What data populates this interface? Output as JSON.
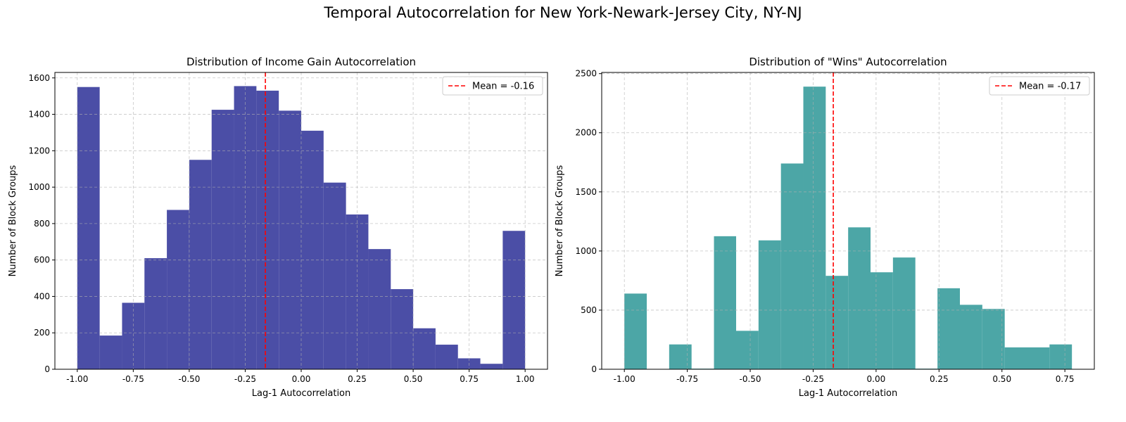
{
  "figure_title": "Temporal Autocorrelation for New York-Newark-Jersey City, NY-NJ",
  "chart_data": [
    {
      "type": "bar",
      "subtype": "histogram",
      "title": "Distribution of Income Gain Autocorrelation",
      "xlabel": "Lag-1 Autocorrelation",
      "ylabel": "Number of Block Groups",
      "color": "#4b4ea6",
      "bin_edges": [
        -1.0,
        -0.9,
        -0.8,
        -0.7,
        -0.6,
        -0.5,
        -0.4,
        -0.3,
        -0.2,
        -0.1,
        0.0,
        0.1,
        0.2,
        0.3,
        0.4,
        0.5,
        0.6,
        0.7,
        0.8,
        0.9,
        1.0
      ],
      "values": [
        1550,
        185,
        365,
        610,
        875,
        1150,
        1425,
        1555,
        1530,
        1420,
        1310,
        1025,
        850,
        660,
        440,
        225,
        135,
        60,
        30,
        760
      ],
      "xlim": [
        -1.1,
        1.1
      ],
      "ylim": [
        0,
        1630
      ],
      "xticks": [
        -1.0,
        -0.75,
        -0.5,
        -0.25,
        0.0,
        0.25,
        0.5,
        0.75,
        1.0
      ],
      "xtick_labels": [
        "-1.00",
        "-0.75",
        "-0.50",
        "-0.25",
        "0.00",
        "0.25",
        "0.50",
        "0.75",
        "1.00"
      ],
      "yticks": [
        0,
        200,
        400,
        600,
        800,
        1000,
        1200,
        1400,
        1600
      ],
      "ytick_labels": [
        "0",
        "200",
        "400",
        "600",
        "800",
        "1000",
        "1200",
        "1400",
        "1600"
      ],
      "mean": -0.16,
      "mean_color": "#ff0000",
      "legend_label": "Mean = -0.16",
      "legend_position": "top-right",
      "grid": true
    },
    {
      "type": "bar",
      "subtype": "histogram",
      "title": "Distribution of \"Wins\" Autocorrelation",
      "xlabel": "Lag-1 Autocorrelation",
      "ylabel": "Number of Block Groups",
      "color": "#4ca6a6",
      "bin_edges": [
        -1.0,
        -0.911,
        -0.822,
        -0.733,
        -0.644,
        -0.556,
        -0.467,
        -0.378,
        -0.289,
        -0.2,
        -0.111,
        -0.022,
        0.067,
        0.156,
        0.244,
        0.333,
        0.422,
        0.511,
        0.6,
        0.689,
        0.778
      ],
      "values": [
        640,
        0,
        210,
        5,
        1125,
        325,
        1090,
        1740,
        2390,
        790,
        1200,
        820,
        945,
        5,
        685,
        545,
        510,
        185,
        185,
        210
      ],
      "xlim": [
        -1.09,
        0.867
      ],
      "ylim": [
        0,
        2510
      ],
      "xticks": [
        -1.0,
        -0.75,
        -0.5,
        -0.25,
        0.0,
        0.25,
        0.5,
        0.75
      ],
      "xtick_labels": [
        "-1.00",
        "-0.75",
        "-0.50",
        "-0.25",
        "0.00",
        "0.25",
        "0.50",
        "0.75"
      ],
      "yticks": [
        0,
        500,
        1000,
        1500,
        2000,
        2500
      ],
      "ytick_labels": [
        "0",
        "500",
        "1000",
        "1500",
        "2000",
        "2500"
      ],
      "mean": -0.17,
      "mean_color": "#ff0000",
      "legend_label": "Mean = -0.17",
      "legend_position": "top-right",
      "grid": true
    }
  ]
}
